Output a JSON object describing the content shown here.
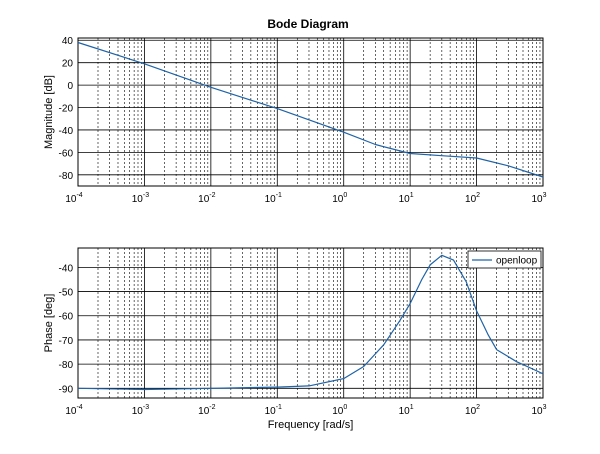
{
  "figure_title": "Bode Diagram",
  "chart_data": [
    {
      "type": "line",
      "title": "Bode Diagram",
      "xlabel": "",
      "ylabel": "Magnitude [dB]",
      "xscale": "log",
      "xlim": [
        0.0001,
        1000
      ],
      "ylim": [
        -90,
        42
      ],
      "xticks": [
        {
          "base": "10",
          "exp": "-4"
        },
        {
          "base": "10",
          "exp": "-3"
        },
        {
          "base": "10",
          "exp": "-2"
        },
        {
          "base": "10",
          "exp": "-1"
        },
        {
          "base": "10",
          "exp": "0"
        },
        {
          "base": "10",
          "exp": "1"
        },
        {
          "base": "10",
          "exp": "2"
        },
        {
          "base": "10",
          "exp": "3"
        }
      ],
      "yticks": [
        "40",
        "20",
        "0",
        "-20",
        "-40",
        "-60",
        "-80"
      ],
      "grid": true,
      "series": [
        {
          "color": "#1f63a8",
          "x": [
            0.0001,
            0.001,
            0.01,
            0.1,
            1,
            3,
            10,
            30,
            100,
            300,
            1000
          ],
          "y": [
            38,
            19,
            -2,
            -21,
            -42,
            -53,
            -61,
            -63,
            -65,
            -72,
            -82
          ]
        }
      ]
    },
    {
      "type": "line",
      "xlabel": "Frequency [rad/s]",
      "ylabel": "Phase [deg]",
      "xscale": "log",
      "xlim": [
        0.0001,
        1000
      ],
      "ylim": [
        -94,
        -32
      ],
      "xticks": [
        {
          "base": "10",
          "exp": "-4"
        },
        {
          "base": "10",
          "exp": "-3"
        },
        {
          "base": "10",
          "exp": "-2"
        },
        {
          "base": "10",
          "exp": "-1"
        },
        {
          "base": "10",
          "exp": "0"
        },
        {
          "base": "10",
          "exp": "1"
        },
        {
          "base": "10",
          "exp": "2"
        },
        {
          "base": "10",
          "exp": "3"
        }
      ],
      "yticks": [
        "-40",
        "-50",
        "-60",
        "-70",
        "-80",
        "-90"
      ],
      "grid": true,
      "legend_position": "top-right",
      "series": [
        {
          "name": "openloop",
          "color": "#1f63a8",
          "x": [
            0.0001,
            0.001,
            0.01,
            0.1,
            0.3,
            1,
            2,
            4,
            7,
            10,
            15,
            20,
            30,
            45,
            70,
            100,
            150,
            200,
            400,
            700,
            1000
          ],
          "y": [
            -90,
            -90.5,
            -90,
            -89.5,
            -89,
            -86,
            -81,
            -72,
            -62,
            -55,
            -45,
            -39,
            -35,
            -37,
            -46,
            -58,
            -68,
            -74,
            -79,
            -82,
            -84
          ]
        }
      ]
    }
  ]
}
